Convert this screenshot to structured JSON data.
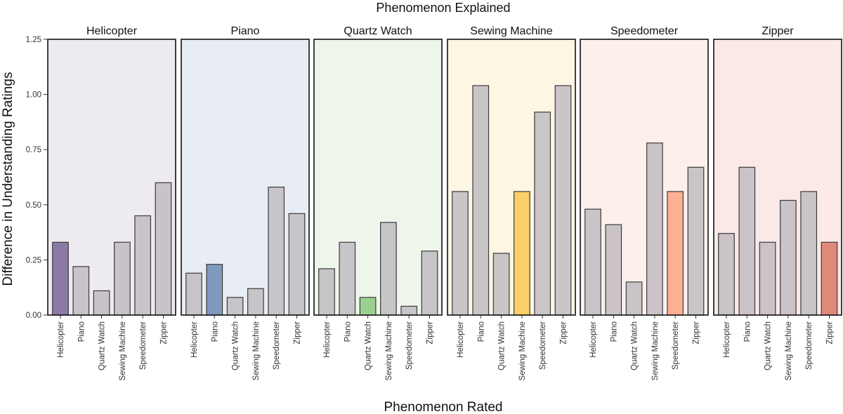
{
  "chart_data": {
    "type": "bar",
    "title": "Phenomenon Explained",
    "xlabel": "Phenomenon Rated",
    "ylabel": "Difference in Understanding Ratings",
    "ylim": [
      0,
      1.25
    ],
    "yticks": [
      0.0,
      0.25,
      0.5,
      0.75,
      1.0,
      1.25
    ],
    "ytick_labels": [
      "0.00",
      "0.25",
      "0.50",
      "0.75",
      "1.00",
      "1.25"
    ],
    "categories": [
      "Helicopter",
      "Piano",
      "Quartz Watch",
      "Sewing Machine",
      "Speedometer",
      "Zipper"
    ],
    "panels": [
      {
        "name": "Helicopter",
        "background": "#eeeaf1",
        "highlight_color": "#8c7aa6",
        "values": [
          0.33,
          0.22,
          0.11,
          0.33,
          0.45,
          0.6
        ]
      },
      {
        "name": "Piano",
        "background": "#e8edf5",
        "highlight_color": "#7f99bf",
        "values": [
          0.19,
          0.23,
          0.08,
          0.12,
          0.58,
          0.46
        ]
      },
      {
        "name": "Quartz Watch",
        "background": "#eef6eb",
        "highlight_color": "#9ad18e",
        "values": [
          0.21,
          0.33,
          0.08,
          0.42,
          0.04,
          0.29
        ]
      },
      {
        "name": "Sewing Machine",
        "background": "#fcf6e3",
        "highlight_color": "#fbcf68",
        "values": [
          0.56,
          1.04,
          0.28,
          0.56,
          0.92,
          1.04
        ]
      },
      {
        "name": "Speedometer",
        "background": "#fdf0ea",
        "highlight_color": "#fbb092",
        "values": [
          0.48,
          0.41,
          0.15,
          0.78,
          0.56,
          0.67
        ]
      },
      {
        "name": "Zipper",
        "background": "#fbe9e7",
        "highlight_color": "#e0887a",
        "values": [
          0.37,
          0.67,
          0.33,
          0.52,
          0.56,
          0.33
        ]
      }
    ]
  }
}
